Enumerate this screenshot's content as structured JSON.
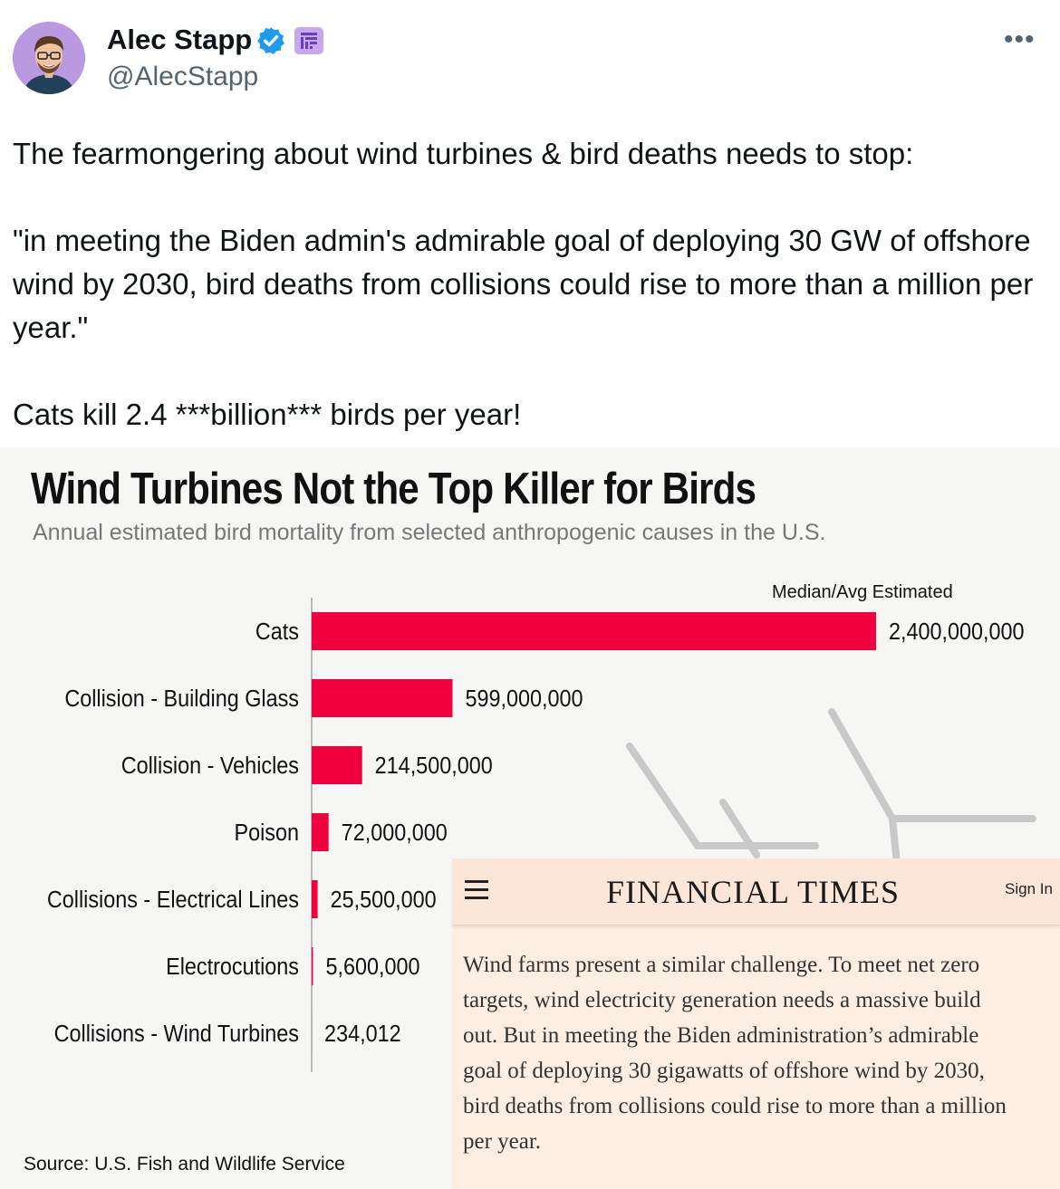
{
  "author": {
    "name": "Alec Stapp",
    "handle": "@AlecStapp"
  },
  "tweet": {
    "paragraphs": [
      "The fearmongering about wind turbines & bird deaths needs to stop:",
      "",
      "\"in meeting the Biden admin's admirable goal of deploying 30 GW of offshore wind by 2030, bird deaths from collisions could rise to more than a million per year.\"",
      "",
      "Cats kill 2.4 ***billion*** birds per year!"
    ]
  },
  "colors": {
    "bar": "#f0003f",
    "verified": "#1d9bf0",
    "ft_background": "#fdeee3"
  },
  "icons": {
    "verified": "verified-badge-icon",
    "affiliate": "affiliate-badge-icon",
    "more": "more-options-icon",
    "menu": "hamburger-menu-icon"
  },
  "chart_data": {
    "type": "bar",
    "orientation": "horizontal",
    "title": "Wind Turbines Not the Top Killer for Birds",
    "subtitle": "Annual estimated bird mortality from selected anthropogenic causes in the U.S.",
    "value_header": "Median/Avg Estimated",
    "categories": [
      "Cats",
      "Collision - Building Glass",
      "Collision - Vehicles",
      "Poison",
      "Collisions - Electrical Lines",
      "Electrocutions",
      "Collisions - Wind Turbines"
    ],
    "values": [
      2400000000,
      599000000,
      214500000,
      72000000,
      25500000,
      5600000,
      234012
    ],
    "value_labels": [
      "2,400,000,000",
      "599,000,000",
      "214,500,000",
      "72,000,000",
      "25,500,000",
      "5,600,000",
      "234,012"
    ],
    "source": "Source:  U.S. Fish and Wildlife Service"
  },
  "ft_article": {
    "masthead": "FINANCIAL TIMES",
    "sign_in": "Sign In",
    "lines": [
      "Wind farms present a similar challenge. To meet net zero",
      "targets, wind electricity generation needs a massive build",
      "out. But in meeting the Biden administration’s admirable",
      "goal of deploying 30 gigawatts of offshore wind by 2030,",
      "bird deaths from collisions could rise to more than a million",
      "per year."
    ]
  }
}
